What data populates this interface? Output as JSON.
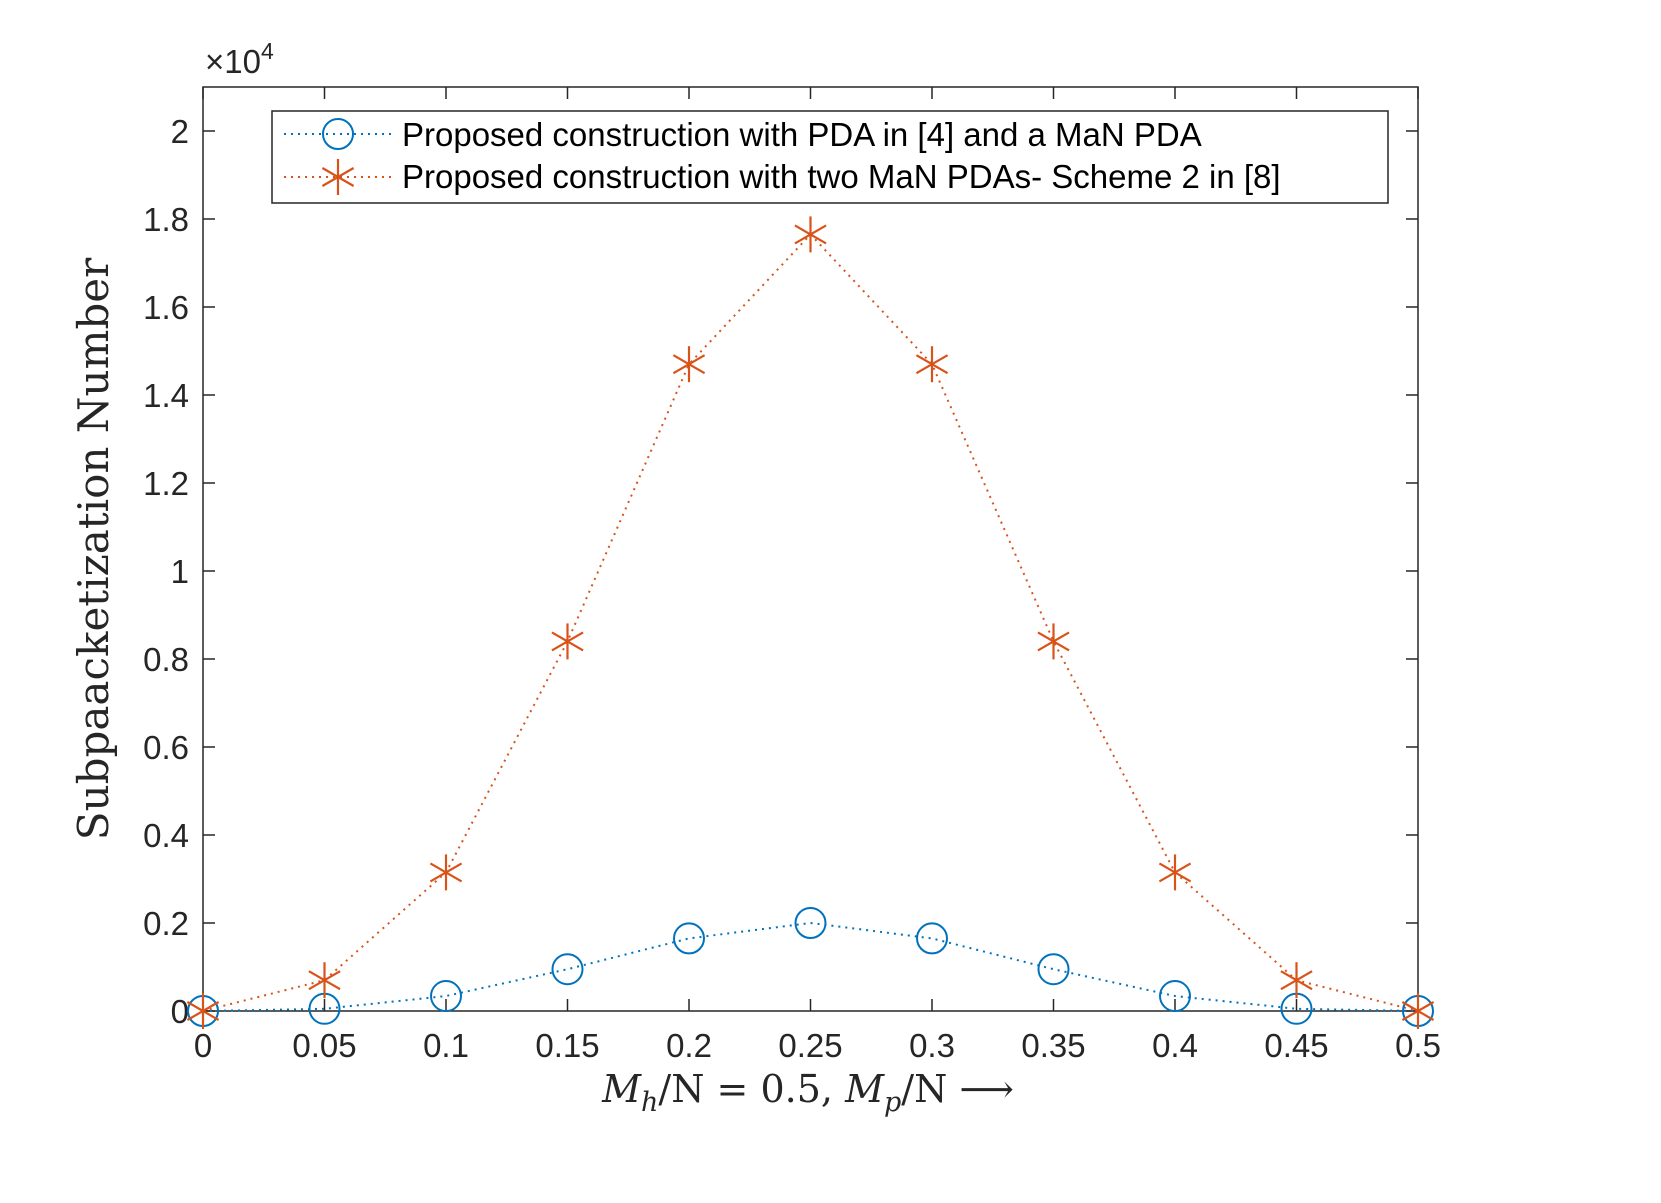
{
  "chart_data": {
    "type": "line",
    "title": "",
    "xlabel": "Mh/N = 0.5, Mp/N ⟶",
    "xlabel_parts": {
      "m1": "M",
      "s1": "h",
      "rest1": "/N = 0.5, ",
      "m2": "M",
      "s2": "p",
      "rest2": "/N ⟶"
    },
    "ylabel": "Subpaacketization Number",
    "exponent_label": {
      "prefix": "×10",
      "power": "4"
    },
    "x": [
      0,
      0.05,
      0.1,
      0.15,
      0.2,
      0.25,
      0.3,
      0.35,
      0.4,
      0.45,
      0.5
    ],
    "xlim": [
      0,
      0.5
    ],
    "ylim": [
      0,
      2.1
    ],
    "x_ticks": [
      "0",
      "0.05",
      "0.1",
      "0.15",
      "0.2",
      "0.25",
      "0.3",
      "0.35",
      "0.4",
      "0.45",
      "0.5"
    ],
    "y_ticks": [
      "0",
      "0.2",
      "0.4",
      "0.6",
      "0.8",
      "1",
      "1.2",
      "1.4",
      "1.6",
      "1.8",
      "2"
    ],
    "legend_position": "top",
    "series": [
      {
        "name": "Proposed construction with PDA in [4] and a MaN PDA",
        "marker": "circle",
        "line_style": "dotted",
        "color": "#0072BD",
        "values": [
          0,
          0.005,
          0.034,
          0.095,
          0.165,
          0.2,
          0.165,
          0.095,
          0.034,
          0.005,
          0
        ]
      },
      {
        "name": "Proposed construction with two MaN PDAs- Scheme 2 in [8]",
        "marker": "asterisk",
        "line_style": "dotted",
        "color": "#D95319",
        "values": [
          0,
          0.07,
          0.315,
          0.84,
          1.47,
          1.765,
          1.47,
          0.84,
          0.315,
          0.07,
          0
        ]
      }
    ]
  }
}
